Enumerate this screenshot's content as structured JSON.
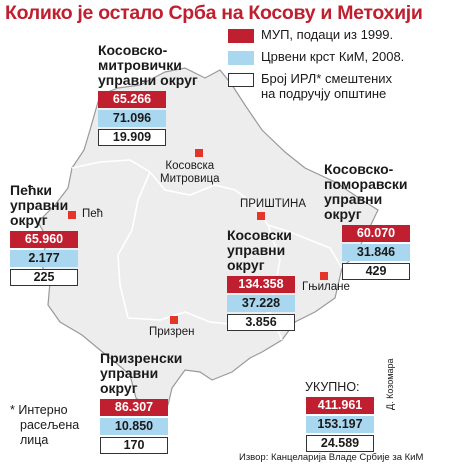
{
  "title": "Колико је остало Срба на Косову и Метохији",
  "legend": [
    {
      "color": "#c01f2f",
      "label": "МУП, подаци из 1999."
    },
    {
      "color": "#a9d7ef",
      "label": "Црвени крст КиМ, 2008."
    },
    {
      "color": "#ffffff",
      "label_line1": "Број ИРЛ* смештених",
      "label_line2": "на подручју општине"
    }
  ],
  "districts": {
    "mitrovica": {
      "name_lines": [
        "Косовско-",
        "митровички",
        "управни округ"
      ],
      "mup": "65.266",
      "red_cross": "71.096",
      "irl": "19.909",
      "city": "Косовска\nМитровица"
    },
    "pec": {
      "name_lines": [
        "Пећки",
        "управни",
        "округ"
      ],
      "mup": "65.960",
      "red_cross": "2.177",
      "irl": "225",
      "city": "Пећ"
    },
    "kosovo": {
      "name_lines": [
        "Косовски",
        "управни",
        "округ"
      ],
      "mup": "134.358",
      "red_cross": "37.228",
      "irl": "3.856",
      "city": "ПРИШТИНА"
    },
    "pomoravlje": {
      "name_lines": [
        "Косовско-",
        "поморавски",
        "управни",
        "округ"
      ],
      "mup": "60.070",
      "red_cross": "31.846",
      "irl": "429",
      "city": "Гњилане"
    },
    "prizren": {
      "name_lines": [
        "Призренски",
        "управни",
        "округ"
      ],
      "mup": "86.307",
      "red_cross": "10.850",
      "irl": "170",
      "city": "Призрен"
    }
  },
  "total": {
    "label": "УКУПНО:",
    "mup": "411.961",
    "red_cross": "153.197",
    "irl": "24.589"
  },
  "footnote": [
    "* Интерно",
    "расељена",
    "лица"
  ],
  "source": "Извор: Канцеларија Владе Србије за КиМ",
  "author": "Д. Козомара"
}
